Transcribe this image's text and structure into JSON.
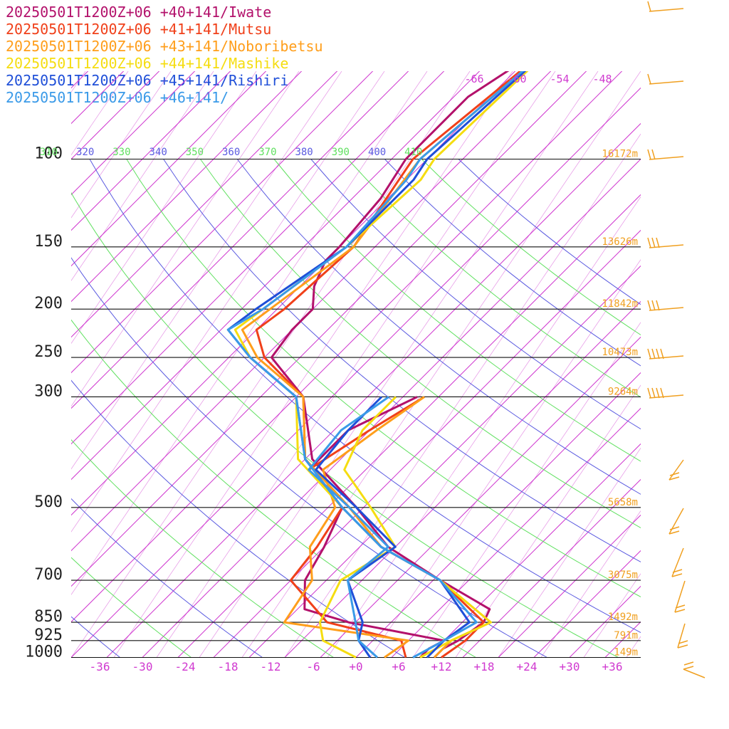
{
  "legend": [
    {
      "text": "20250501T1200Z+06 +40+141/Iwate",
      "color": "#b3116b"
    },
    {
      "text": "20250501T1200Z+06 +41+141/Mutsu",
      "color": "#f0401a"
    },
    {
      "text": "20250501T1200Z+06 +43+141/Noboribetsu",
      "color": "#ff9e1b"
    },
    {
      "text": "20250501T1200Z+06 +44+141/Mashike",
      "color": "#f5dd10"
    },
    {
      "text": "20250501T1200Z+06 +45+141/Rishiri",
      "color": "#1f4fd8"
    },
    {
      "text": "20250501T1200Z+06 +46+141/",
      "color": "#3a9ae8"
    }
  ],
  "chart_data": {
    "type": "line",
    "pressure_levels": [
      100,
      150,
      200,
      250,
      300,
      500,
      700,
      850,
      925,
      1000
    ],
    "temperature_ticks": [
      "-36",
      "-30",
      "-24",
      "-18",
      "-12",
      "-6",
      "+0",
      "+6",
      "+12",
      "+18",
      "+24",
      "+30",
      "+36"
    ],
    "xlim": [
      -40,
      40
    ],
    "ylim": [
      1000,
      100
    ],
    "height_labels": [
      {
        "p": 100,
        "text": "16172m"
      },
      {
        "p": 150,
        "text": "13626m"
      },
      {
        "p": 200,
        "text": "11842m"
      },
      {
        "p": 250,
        "text": "10473m"
      },
      {
        "p": 300,
        "text": "9264m"
      },
      {
        "p": 500,
        "text": "5658m"
      },
      {
        "p": 700,
        "text": "3075m"
      },
      {
        "p": 850,
        "text": "1492m"
      },
      {
        "p": 925,
        "text": "791m"
      },
      {
        "p": 1000,
        "text": "149m"
      }
    ],
    "theta_labels": [
      "310",
      "320",
      "330",
      "340",
      "350",
      "360",
      "370",
      "380",
      "390",
      "400",
      "410"
    ],
    "mixing_ratio_labels": [
      "-66",
      "-60",
      "-54",
      "-48"
    ],
    "wind_barb_color": "#f0a020",
    "series": [
      {
        "name": "Iwate",
        "color": "#b3116b",
        "temperature": [
          [
            1000,
            11
          ],
          [
            960,
            11
          ],
          [
            925,
            12
          ],
          [
            850,
            13
          ],
          [
            800,
            12
          ],
          [
            700,
            1
          ],
          [
            600,
            -11
          ],
          [
            500,
            -21
          ],
          [
            400,
            -34
          ],
          [
            300,
            -44
          ],
          [
            250,
            -54
          ],
          [
            220,
            -55
          ],
          [
            200,
            -55
          ],
          [
            180,
            -58
          ],
          [
            160,
            -60
          ],
          [
            150,
            -60
          ],
          [
            120,
            -61
          ],
          [
            100,
            -63
          ],
          [
            75,
            -63
          ],
          [
            55,
            -58
          ]
        ],
        "dewpoint": [
          [
            1000,
            9
          ],
          [
            960,
            9
          ],
          [
            925,
            10
          ],
          [
            850,
            -6
          ],
          [
            800,
            -14
          ],
          [
            700,
            -18
          ],
          [
            600,
            -20
          ],
          [
            500,
            -23
          ],
          [
            420,
            -33
          ],
          [
            350,
            -33
          ],
          [
            300,
            -28
          ]
        ]
      },
      {
        "name": "Mutsu",
        "color": "#f0401a",
        "temperature": [
          [
            1000,
            12
          ],
          [
            925,
            13
          ],
          [
            850,
            13
          ],
          [
            700,
            1
          ],
          [
            600,
            -12
          ],
          [
            500,
            -22
          ],
          [
            400,
            -35
          ],
          [
            300,
            -44
          ],
          [
            250,
            -55
          ],
          [
            220,
            -60
          ],
          [
            200,
            -59
          ],
          [
            150,
            -58
          ],
          [
            100,
            -62
          ],
          [
            55,
            -58
          ]
        ],
        "dewpoint": [
          [
            1000,
            7
          ],
          [
            925,
            4
          ],
          [
            850,
            -9
          ],
          [
            700,
            -20
          ],
          [
            600,
            -21
          ],
          [
            500,
            -23
          ],
          [
            420,
            -33
          ],
          [
            350,
            -30
          ],
          [
            300,
            -27
          ]
        ]
      },
      {
        "name": "Noboribetsu",
        "color": "#ff9e1b",
        "temperature": [
          [
            1000,
            11
          ],
          [
            925,
            11
          ],
          [
            850,
            14
          ],
          [
            700,
            1
          ],
          [
            600,
            -12
          ],
          [
            500,
            -22
          ],
          [
            400,
            -35
          ],
          [
            300,
            -44
          ],
          [
            250,
            -56
          ],
          [
            220,
            -62
          ],
          [
            200,
            -61
          ],
          [
            150,
            -58
          ],
          [
            100,
            -61
          ],
          [
            55,
            -58
          ]
        ],
        "dewpoint": [
          [
            1000,
            4
          ],
          [
            925,
            5
          ],
          [
            850,
            -15
          ],
          [
            700,
            -17
          ],
          [
            600,
            -22
          ],
          [
            500,
            -24
          ],
          [
            420,
            -31
          ],
          [
            350,
            -29
          ],
          [
            300,
            -27
          ]
        ]
      },
      {
        "name": "Mashike",
        "color": "#f5dd10",
        "temperature": [
          [
            1000,
            9
          ],
          [
            925,
            11
          ],
          [
            850,
            14
          ],
          [
            700,
            1
          ],
          [
            600,
            -12
          ],
          [
            500,
            -23
          ],
          [
            400,
            -36
          ],
          [
            300,
            -45
          ],
          [
            250,
            -57
          ],
          [
            220,
            -63
          ],
          [
            200,
            -62
          ],
          [
            150,
            -59
          ],
          [
            110,
            -58
          ],
          [
            100,
            -59
          ],
          [
            55,
            -58
          ]
        ],
        "dewpoint": [
          [
            1000,
            0
          ],
          [
            925,
            -7
          ],
          [
            850,
            -10
          ],
          [
            700,
            -13
          ],
          [
            600,
            -10
          ],
          [
            500,
            -19
          ],
          [
            420,
            -28
          ],
          [
            350,
            -31
          ],
          [
            300,
            -31
          ]
        ]
      },
      {
        "name": "Rishiri",
        "color": "#1f4fd8",
        "temperature": [
          [
            1000,
            10
          ],
          [
            925,
            10
          ],
          [
            850,
            11
          ],
          [
            700,
            1
          ],
          [
            600,
            -12
          ],
          [
            500,
            -23
          ],
          [
            400,
            -35
          ],
          [
            300,
            -45
          ],
          [
            250,
            -57
          ],
          [
            220,
            -64
          ],
          [
            200,
            -63
          ],
          [
            150,
            -59
          ],
          [
            110,
            -59
          ],
          [
            100,
            -60
          ],
          [
            55,
            -58
          ]
        ],
        "dewpoint": [
          [
            1000,
            2
          ],
          [
            925,
            -2
          ],
          [
            850,
            -4
          ],
          [
            700,
            -12
          ],
          [
            600,
            -10
          ],
          [
            500,
            -21
          ],
          [
            420,
            -32
          ],
          [
            350,
            -33
          ],
          [
            300,
            -33
          ]
        ]
      },
      {
        "name": "",
        "color": "#3a9ae8",
        "temperature": [
          [
            1000,
            8
          ],
          [
            925,
            10
          ],
          [
            850,
            12
          ],
          [
            700,
            1
          ],
          [
            600,
            -12
          ],
          [
            500,
            -23
          ],
          [
            400,
            -35
          ],
          [
            300,
            -45
          ],
          [
            250,
            -57
          ],
          [
            220,
            -64
          ],
          [
            200,
            -62
          ],
          [
            150,
            -59
          ],
          [
            110,
            -60
          ],
          [
            100,
            -61
          ],
          [
            55,
            -58
          ]
        ],
        "dewpoint": [
          [
            1000,
            3
          ],
          [
            925,
            -2
          ],
          [
            850,
            -5
          ],
          [
            700,
            -12
          ],
          [
            600,
            -11
          ],
          [
            500,
            -22
          ],
          [
            420,
            -33
          ],
          [
            350,
            -34
          ],
          [
            300,
            -32
          ]
        ]
      }
    ]
  }
}
